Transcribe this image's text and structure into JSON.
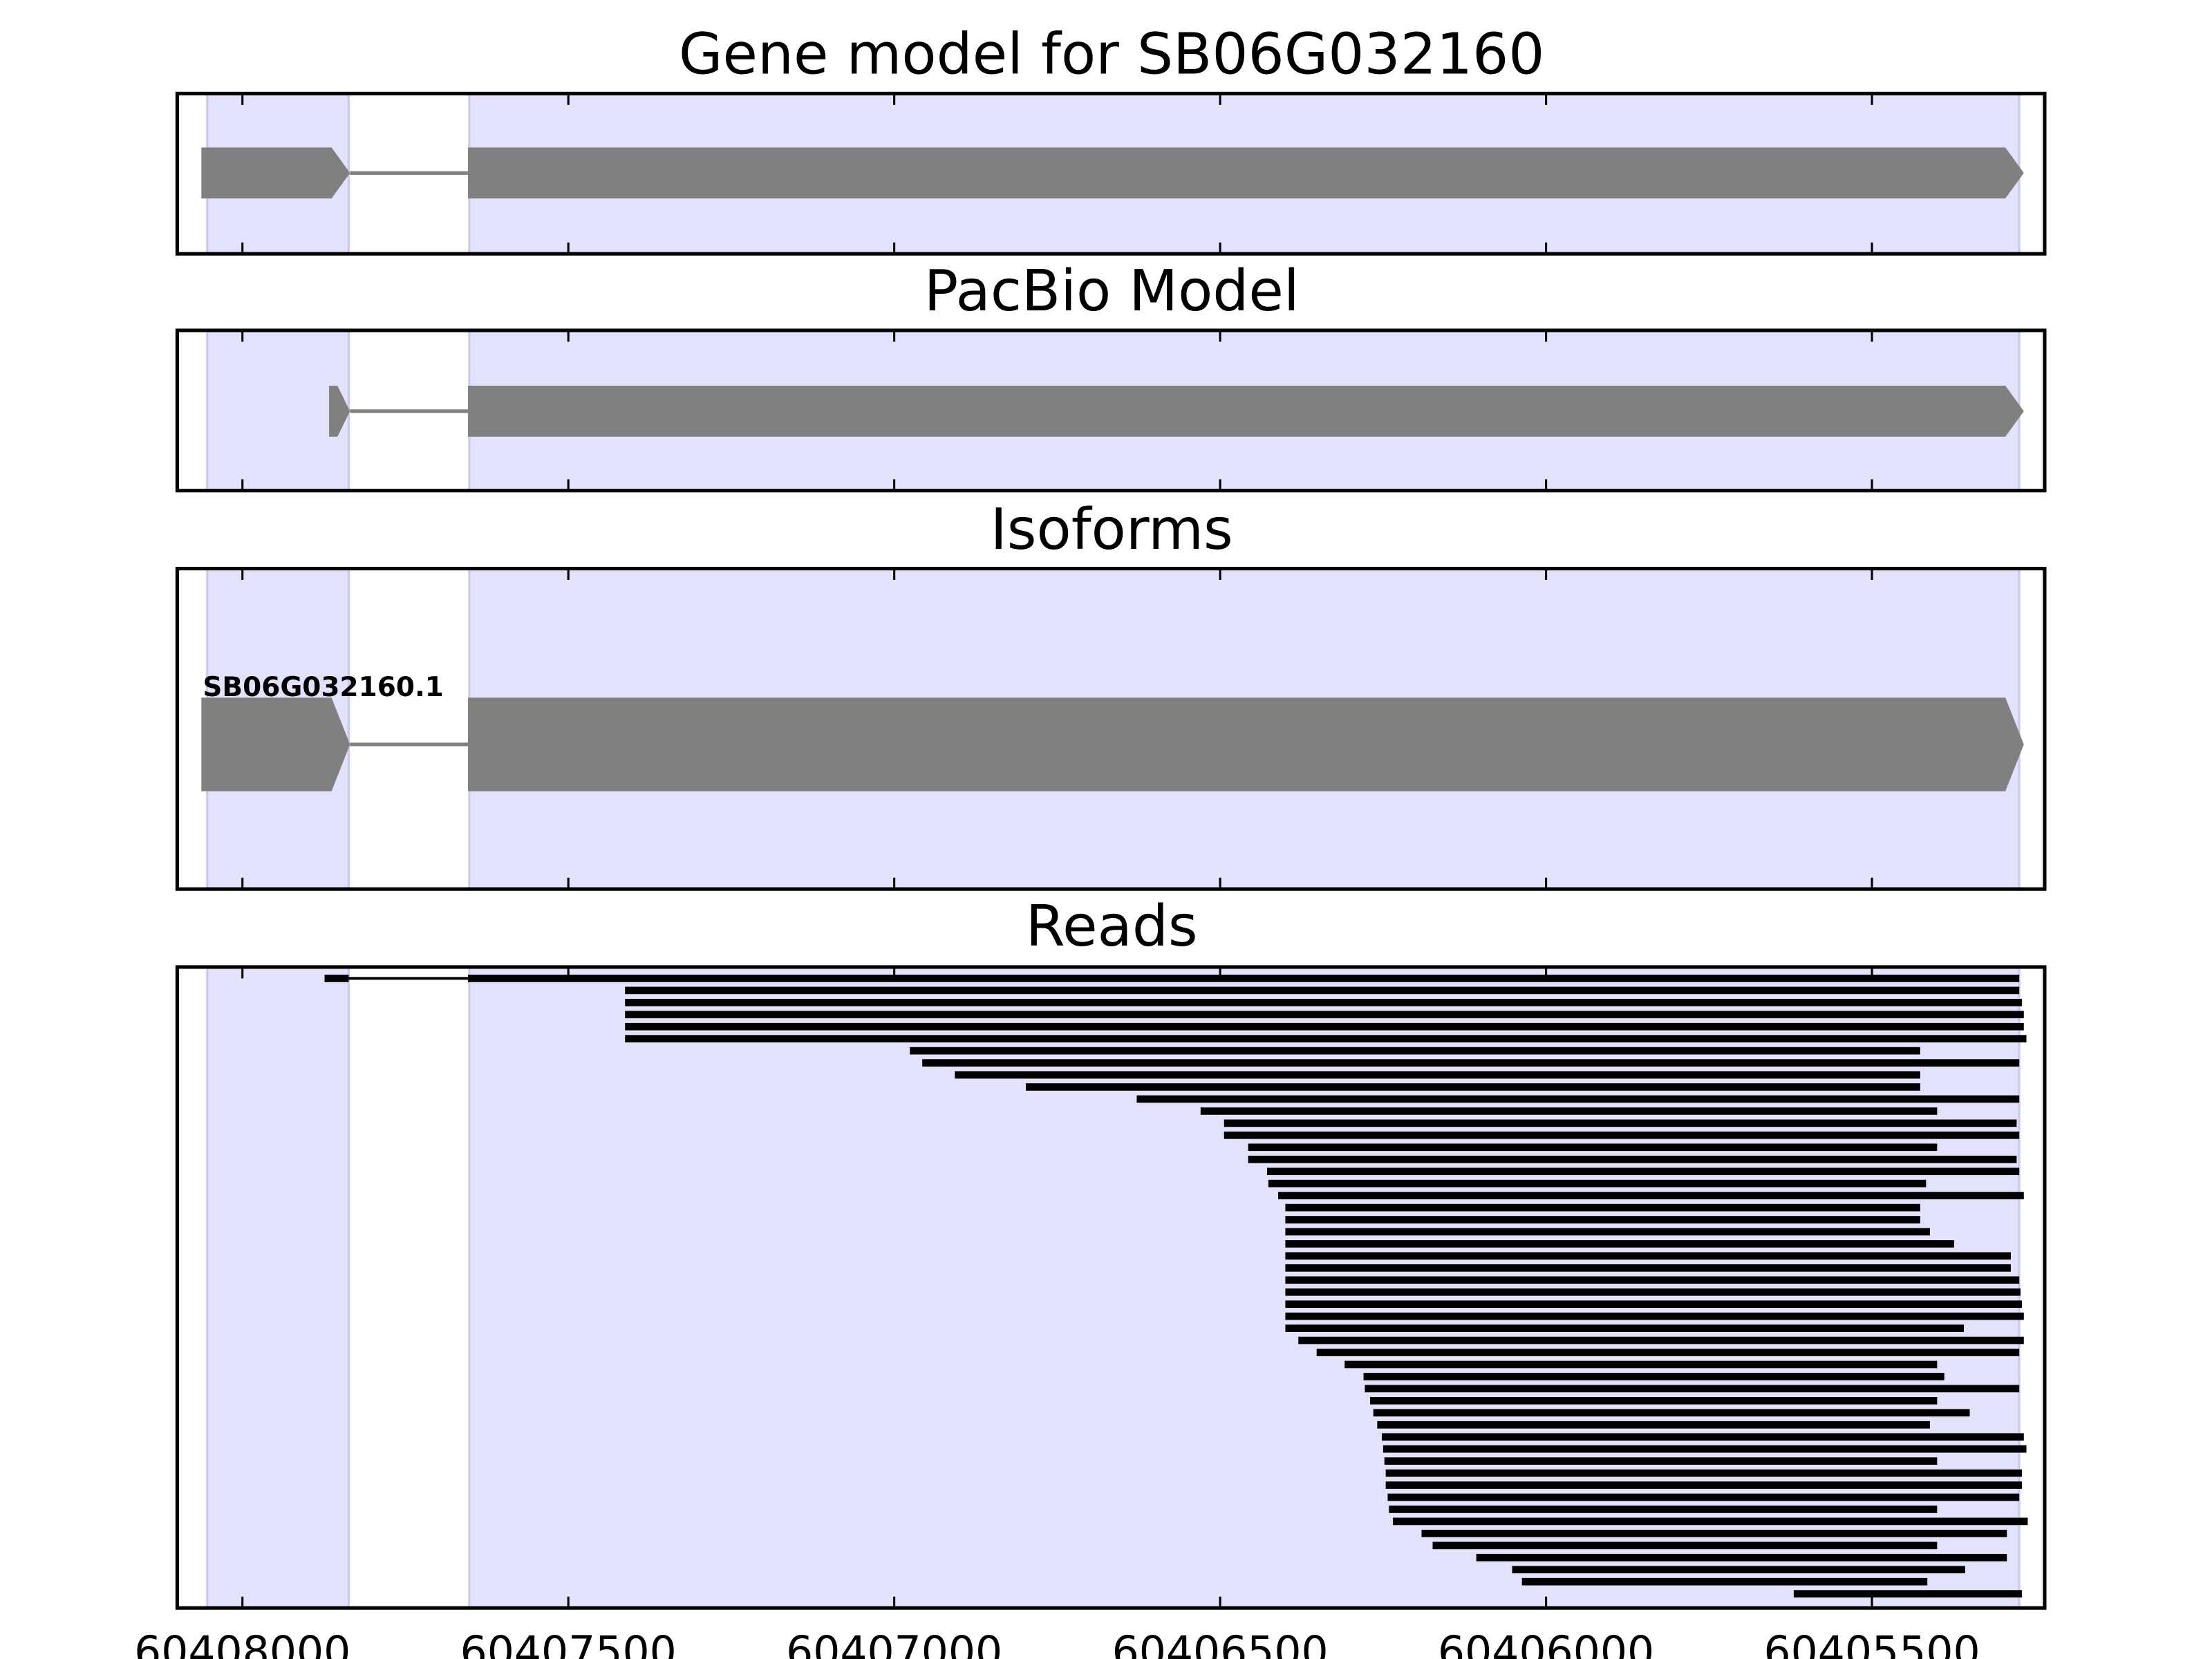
{
  "chart_data": [
    {
      "type": "gene-track",
      "title": "Gene model for SB06G032160",
      "xlim": [
        60408100,
        60405235
      ],
      "x_reversed": true,
      "highlight_regions": [
        [
          60408054,
          60407837
        ],
        [
          60407652,
          60405274
        ]
      ],
      "exons": [
        [
          60408063,
          60407835
        ],
        [
          60407654,
          60405267
        ]
      ]
    },
    {
      "type": "gene-track",
      "title": "PacBio Model",
      "xlim": [
        60408100,
        60405235
      ],
      "x_reversed": true,
      "highlight_regions": [
        [
          60408054,
          60407837
        ],
        [
          60407652,
          60405274
        ]
      ],
      "exons": [
        [
          60407867,
          60407835
        ],
        [
          60407654,
          60405267
        ]
      ]
    },
    {
      "type": "gene-track",
      "title": "Isoforms",
      "xlim": [
        60408100,
        60405235
      ],
      "x_reversed": true,
      "highlight_regions": [
        [
          60408054,
          60407837
        ],
        [
          60407652,
          60405274
        ]
      ],
      "isoform_label": "SB06G032160.1",
      "exons": [
        [
          60408063,
          60407835
        ],
        [
          60407654,
          60405267
        ]
      ]
    },
    {
      "type": "read-track",
      "title": "Reads",
      "xlim": [
        60408100,
        60405235
      ],
      "x_reversed": true,
      "highlight_regions": [
        [
          60408054,
          60407837
        ],
        [
          60407652,
          60405274
        ]
      ],
      "xticks": [
        "60408000",
        "60407500",
        "60407000",
        "60406500",
        "60406000",
        "60405500"
      ],
      "xtick_values": [
        60408000,
        60407500,
        60407000,
        60406500,
        60406000,
        60405500
      ],
      "reads": [
        [
          [
            60407874,
            60407837
          ],
          [
            60407654,
            60405274
          ]
        ],
        [
          [
            60407413,
            60405274
          ]
        ],
        [
          [
            60407413,
            60405270
          ]
        ],
        [
          [
            60407413,
            60405267
          ]
        ],
        [
          [
            60407413,
            60405267
          ]
        ],
        [
          [
            60407413,
            60405263
          ]
        ],
        [
          [
            60406976,
            60405426
          ]
        ],
        [
          [
            60406957,
            60405274
          ]
        ],
        [
          [
            60406907,
            60405426
          ]
        ],
        [
          [
            60406798,
            60405426
          ]
        ],
        [
          [
            60406628,
            60405274
          ]
        ],
        [
          [
            60406530,
            60405400
          ]
        ],
        [
          [
            60406494,
            60405278
          ]
        ],
        [
          [
            60406494,
            60405274
          ]
        ],
        [
          [
            60406457,
            60405400
          ]
        ],
        [
          [
            60406457,
            60405278
          ]
        ],
        [
          [
            60406428,
            60405274
          ]
        ],
        [
          [
            60406426,
            60405417
          ]
        ],
        [
          [
            60406411,
            60405267
          ]
        ],
        [
          [
            60406400,
            60405426
          ]
        ],
        [
          [
            60406400,
            60405426
          ]
        ],
        [
          [
            60406400,
            60405411
          ]
        ],
        [
          [
            60406400,
            60405374
          ]
        ],
        [
          [
            60406400,
            60405287
          ]
        ],
        [
          [
            60406400,
            60405287
          ]
        ],
        [
          [
            60406400,
            60405274
          ]
        ],
        [
          [
            60406400,
            60405272
          ]
        ],
        [
          [
            60406400,
            60405270
          ]
        ],
        [
          [
            60406400,
            60405267
          ]
        ],
        [
          [
            60406400,
            60405359
          ]
        ],
        [
          [
            60406380,
            60405267
          ]
        ],
        [
          [
            60406352,
            60405274
          ]
        ],
        [
          [
            60406309,
            60405400
          ]
        ],
        [
          [
            60406280,
            60405389
          ]
        ],
        [
          [
            60406278,
            60405274
          ]
        ],
        [
          [
            60406270,
            60405400
          ]
        ],
        [
          [
            60406265,
            60405350
          ]
        ],
        [
          [
            60406259,
            60405411
          ]
        ],
        [
          [
            60406252,
            60405267
          ]
        ],
        [
          [
            60406250,
            60405263
          ]
        ],
        [
          [
            60406248,
            60405400
          ]
        ],
        [
          [
            60406246,
            60405270
          ]
        ],
        [
          [
            60406246,
            60405270
          ]
        ],
        [
          [
            60406243,
            60405274
          ]
        ],
        [
          [
            60406241,
            60405400
          ]
        ],
        [
          [
            60406235,
            60405261
          ]
        ],
        [
          [
            60406191,
            60405293
          ]
        ],
        [
          [
            60406174,
            60405400
          ]
        ],
        [
          [
            60406107,
            60405293
          ]
        ],
        [
          [
            60406052,
            60405357
          ]
        ],
        [
          [
            60406037,
            60405415
          ]
        ],
        [
          [
            60405620,
            60405270
          ]
        ]
      ]
    }
  ],
  "colors": {
    "highlight": "#e2e2fd",
    "highlight_edge": "#c8c8ef",
    "exon": "#808080",
    "read": "#000000"
  }
}
